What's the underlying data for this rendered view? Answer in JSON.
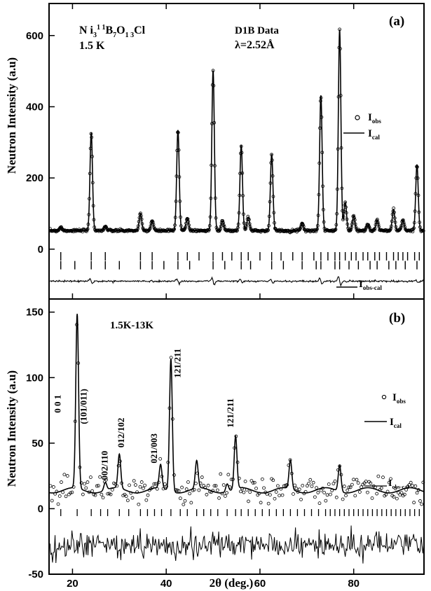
{
  "chart_data": [
    {
      "panel": "(a)",
      "type": "line",
      "ylabel": "Neutron Intensity (a.u)",
      "xlim": [
        15,
        95
      ],
      "ylim": [
        -140,
        690
      ],
      "yticks": [
        0,
        200,
        400,
        600
      ],
      "annotations": {
        "compound": "Ni3 11B7 O13 Cl",
        "temperature": "1.5  K",
        "data": "D1B  Data",
        "wavelength": "λ=2.52Å"
      },
      "legend": [
        {
          "marker": "circle",
          "label": "I",
          "sub": "obs"
        },
        {
          "marker": "line",
          "label": "I",
          "sub": "cal"
        },
        {
          "marker": "line",
          "label": "I",
          "sub": "obs-cal"
        }
      ],
      "background": 52,
      "peaks": [
        {
          "x": 17.5,
          "height": 10
        },
        {
          "x": 24.0,
          "height": 275
        },
        {
          "x": 27.0,
          "height": 12
        },
        {
          "x": 34.5,
          "height": 48
        },
        {
          "x": 37.0,
          "height": 28
        },
        {
          "x": 42.5,
          "height": 282
        },
        {
          "x": 44.5,
          "height": 35
        },
        {
          "x": 50.0,
          "height": 450
        },
        {
          "x": 52.0,
          "height": 28
        },
        {
          "x": 56.0,
          "height": 240
        },
        {
          "x": 57.5,
          "height": 38
        },
        {
          "x": 62.5,
          "height": 215
        },
        {
          "x": 69.0,
          "height": 22
        },
        {
          "x": 73.0,
          "height": 380
        },
        {
          "x": 77.0,
          "height": 565
        },
        {
          "x": 78.2,
          "height": 80
        },
        {
          "x": 80.0,
          "height": 42
        },
        {
          "x": 83.0,
          "height": 20
        },
        {
          "x": 85.0,
          "height": 30
        },
        {
          "x": 88.5,
          "height": 60
        },
        {
          "x": 90.5,
          "height": 30
        },
        {
          "x": 93.5,
          "height": 185
        }
      ],
      "nuclear_reflections": [
        17.5,
        24,
        27,
        34.5,
        37,
        42.5,
        44.5,
        47,
        50,
        52,
        54,
        56,
        57.5,
        60,
        62.5,
        64.5,
        67,
        69,
        71.5,
        73,
        74.5,
        76,
        77,
        78.2,
        79.5,
        80.5,
        82,
        83,
        84.5,
        85.5,
        87,
        88.5,
        89.5,
        90.5,
        91.5,
        93,
        94
      ],
      "magnetic_reflections": [
        17.5,
        20.5,
        24,
        27,
        30,
        34.5,
        37,
        39.5,
        42.5,
        45,
        50,
        52.5,
        56,
        58,
        62.5,
        65,
        69,
        72,
        73,
        76,
        77,
        79,
        81,
        83.5,
        85,
        87.5,
        89,
        91,
        93.5
      ],
      "difference_offset": -90
    },
    {
      "panel": "(b)",
      "type": "line",
      "ylabel": "Neutron Intensity (a.u)",
      "xlabel": "2θ (deg.)",
      "xlim": [
        15,
        95
      ],
      "xticks": [
        20,
        40,
        60,
        80
      ],
      "ylim": [
        -50,
        160
      ],
      "yticks": [
        -50,
        0,
        50,
        100,
        150
      ],
      "annotations": {
        "temperature_difference": "1.5K-13K"
      },
      "legend": [
        {
          "marker": "circle",
          "label": "I",
          "sub": "obs"
        },
        {
          "marker": "line",
          "label": "I",
          "sub": "cal"
        },
        {
          "marker": "line",
          "label": "I",
          "sub": "obs-cal"
        }
      ],
      "background": 14,
      "peaks": [
        {
          "x": 21.0,
          "height": 133,
          "label": "(101/011)"
        },
        {
          "x": 27.0,
          "height": 6,
          "label": "002/110"
        },
        {
          "x": 30.0,
          "height": 26,
          "label": "012/102"
        },
        {
          "x": 38.8,
          "height": 18,
          "label": "021/003"
        },
        {
          "x": 41.0,
          "height": 101,
          "label": "121/211"
        },
        {
          "x": 46.5,
          "height": 21
        },
        {
          "x": 53.0,
          "height": 6
        },
        {
          "x": 54.8,
          "height": 40,
          "label": "121/211"
        },
        {
          "x": 66.5,
          "height": 22
        },
        {
          "x": 77.0,
          "height": 20
        }
      ],
      "peak_labels": [
        {
          "text": "0 0 1",
          "x": 17.5,
          "y": 80
        },
        {
          "text": "(101/011)",
          "x": 23.0,
          "y": 78
        },
        {
          "text": "002/110",
          "x": 27.5,
          "y": 33
        },
        {
          "text": "012/102",
          "x": 31.0,
          "y": 58
        },
        {
          "text": "021/003",
          "x": 38.0,
          "y": 46
        },
        {
          "text": "121/211",
          "x": 43.0,
          "y": 111
        },
        {
          "text": "121/211",
          "x": 54.3,
          "y": 73
        }
      ],
      "reflections": [
        17.5,
        21,
        24,
        26,
        27.5,
        30,
        32,
        34.5,
        36,
        37.5,
        39,
        41,
        43,
        44.5,
        46.5,
        48,
        49.5,
        51,
        53,
        54.8,
        56,
        57.5,
        59,
        60.5,
        62,
        63.5,
        65,
        66.5,
        68,
        69.5,
        71,
        72.5,
        74,
        75,
        76,
        77,
        78,
        79,
        80,
        81,
        82,
        83,
        84,
        85,
        86,
        87,
        88,
        89,
        90,
        91,
        92,
        93,
        94
      ],
      "observed_noise": 5,
      "difference_offset": -28
    }
  ]
}
